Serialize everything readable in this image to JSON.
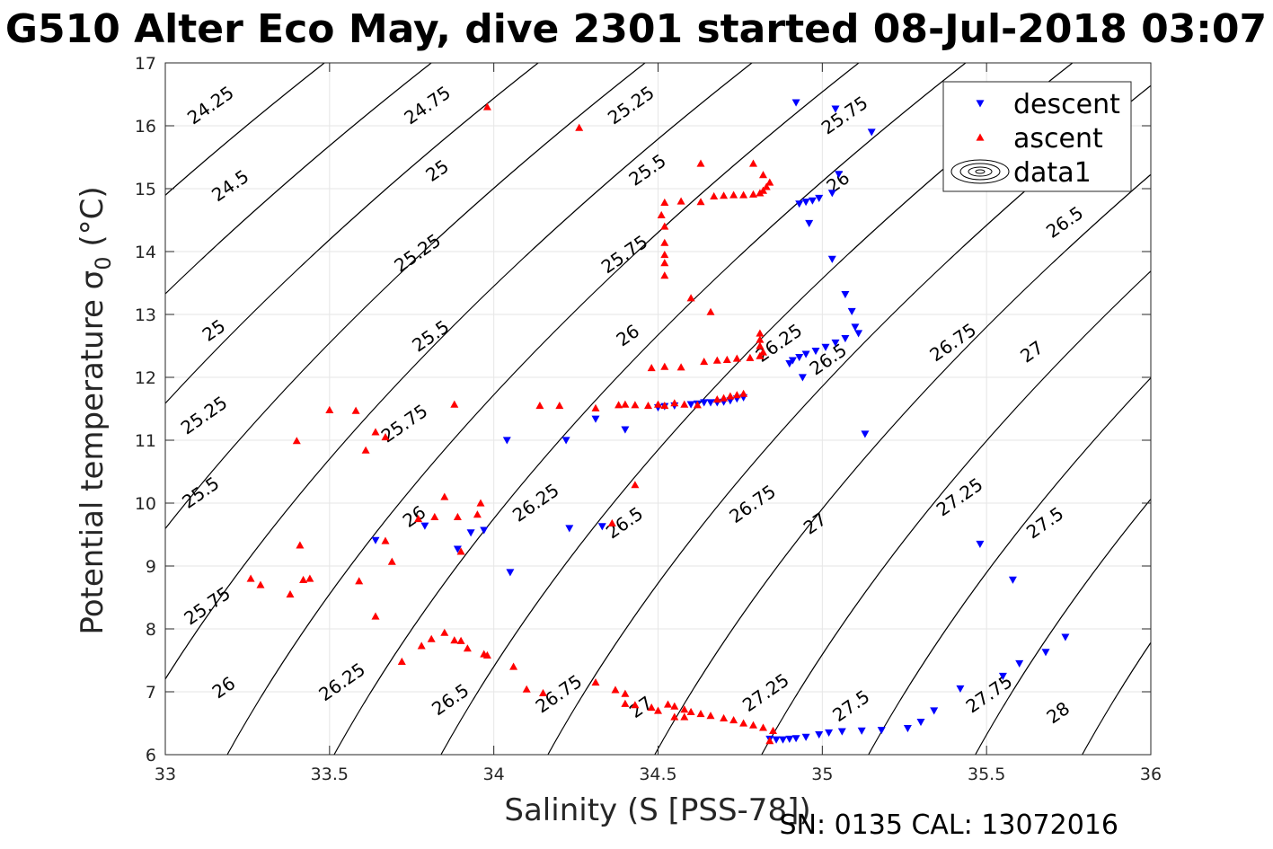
{
  "title": "G510 Alter Eco May, dive 2301 started 08-Jul-2018 03:07",
  "footnote": "SN: 0135  CAL: 13072016",
  "colors": {
    "descent": "#0000ff",
    "ascent": "#ff0000",
    "contour": "#000000",
    "grid": "#e6e6e6"
  },
  "chart_data": {
    "type": "scatter",
    "xlabel": "Salinity (S [PSS-78])",
    "ylabel": "Potential temperature σ0 (°C)",
    "xlim": [
      33,
      36
    ],
    "ylim": [
      6,
      17
    ],
    "xticks": [
      33,
      33.5,
      34,
      34.5,
      35,
      35.5,
      36
    ],
    "yticks": [
      6,
      7,
      8,
      9,
      10,
      11,
      12,
      13,
      14,
      15,
      16,
      17
    ],
    "grid": true,
    "legend_position": "top-right",
    "legend": [
      "descent",
      "ascent",
      "data1"
    ],
    "contour_levels": [
      24.25,
      24.5,
      24.75,
      25,
      25.25,
      25.5,
      25.75,
      26,
      26.25,
      26.5,
      26.75,
      27,
      27.25,
      27.5,
      27.75,
      28
    ],
    "contour_labels": [
      {
        "text": "24.25",
        "s": 33.14,
        "t": 16.31
      },
      {
        "text": "24.5",
        "s": 33.2,
        "t": 15.03
      },
      {
        "text": "24.75",
        "s": 33.8,
        "t": 16.31
      },
      {
        "text": "25",
        "s": 33.83,
        "t": 15.27
      },
      {
        "text": "25.25",
        "s": 34.42,
        "t": 16.31
      },
      {
        "text": "25.5",
        "s": 34.47,
        "t": 15.28
      },
      {
        "text": "25.75",
        "s": 35.07,
        "t": 16.15
      },
      {
        "text": "26",
        "s": 35.05,
        "t": 15.09
      },
      {
        "text": "26.5",
        "s": 35.74,
        "t": 14.45
      },
      {
        "text": "25.25",
        "s": 33.77,
        "t": 13.96
      },
      {
        "text": "25.75",
        "s": 34.4,
        "t": 13.94
      },
      {
        "text": "25",
        "s": 33.15,
        "t": 12.73
      },
      {
        "text": "25.5",
        "s": 33.81,
        "t": 12.64
      },
      {
        "text": "26",
        "s": 34.41,
        "t": 12.65
      },
      {
        "text": "26.25",
        "s": 34.87,
        "t": 12.53
      },
      {
        "text": "26.5",
        "s": 35.02,
        "t": 12.27
      },
      {
        "text": "26.75",
        "s": 35.4,
        "t": 12.54
      },
      {
        "text": "27",
        "s": 35.64,
        "t": 12.39
      },
      {
        "text": "25.25",
        "s": 33.12,
        "t": 11.38
      },
      {
        "text": "25.75",
        "s": 33.73,
        "t": 11.25
      },
      {
        "text": "25.5",
        "s": 33.11,
        "t": 10.15
      },
      {
        "text": "26",
        "s": 33.76,
        "t": 9.77
      },
      {
        "text": "26.25",
        "s": 34.13,
        "t": 9.99
      },
      {
        "text": "26.5",
        "s": 34.4,
        "t": 9.67
      },
      {
        "text": "26.75",
        "s": 34.79,
        "t": 9.97
      },
      {
        "text": "27",
        "s": 34.98,
        "t": 9.66
      },
      {
        "text": "27.25",
        "s": 35.42,
        "t": 10.08
      },
      {
        "text": "27.5",
        "s": 35.68,
        "t": 9.67
      },
      {
        "text": "25.75",
        "s": 33.13,
        "t": 8.35
      },
      {
        "text": "26",
        "s": 33.18,
        "t": 7.05
      },
      {
        "text": "26.25",
        "s": 33.54,
        "t": 7.14
      },
      {
        "text": "26.5",
        "s": 33.87,
        "t": 6.86
      },
      {
        "text": "26.75",
        "s": 34.2,
        "t": 6.95
      },
      {
        "text": "27",
        "s": 34.45,
        "t": 6.74
      },
      {
        "text": "27.25",
        "s": 34.83,
        "t": 6.97
      },
      {
        "text": "27.5",
        "s": 35.09,
        "t": 6.76
      },
      {
        "text": "27.75",
        "s": 35.51,
        "t": 6.95
      },
      {
        "text": "28",
        "s": 35.72,
        "t": 6.65
      }
    ],
    "series": [
      {
        "name": "descent",
        "marker": "triangle-down",
        "points": [
          [
            34.92,
            16.37
          ],
          [
            35.04,
            16.27
          ],
          [
            35.15,
            15.9
          ],
          [
            35.05,
            15.23
          ],
          [
            35.03,
            14.93
          ],
          [
            34.99,
            14.85
          ],
          [
            34.97,
            14.81
          ],
          [
            34.95,
            14.79
          ],
          [
            34.93,
            14.76
          ],
          [
            34.96,
            14.45
          ],
          [
            35.03,
            13.88
          ],
          [
            35.07,
            13.32
          ],
          [
            35.09,
            13.05
          ],
          [
            35.1,
            12.8
          ],
          [
            35.11,
            12.7
          ],
          [
            35.07,
            12.62
          ],
          [
            35.04,
            12.55
          ],
          [
            35.01,
            12.48
          ],
          [
            34.98,
            12.42
          ],
          [
            34.95,
            12.37
          ],
          [
            34.93,
            12.32
          ],
          [
            34.91,
            12.27
          ],
          [
            34.9,
            12.22
          ],
          [
            34.94,
            12.0
          ],
          [
            35.13,
            11.1
          ],
          [
            34.76,
            11.68
          ],
          [
            34.74,
            11.66
          ],
          [
            34.72,
            11.63
          ],
          [
            34.7,
            11.61
          ],
          [
            34.68,
            11.6
          ],
          [
            34.66,
            11.6
          ],
          [
            34.64,
            11.6
          ],
          [
            34.62,
            11.58
          ],
          [
            34.6,
            11.57
          ],
          [
            34.55,
            11.55
          ],
          [
            34.52,
            11.54
          ],
          [
            34.5,
            11.52
          ],
          [
            34.4,
            11.17
          ],
          [
            34.31,
            11.34
          ],
          [
            34.22,
            11.0
          ],
          [
            34.04,
            11.0
          ],
          [
            34.23,
            9.6
          ],
          [
            34.33,
            9.63
          ],
          [
            34.05,
            8.9
          ],
          [
            33.97,
            9.57
          ],
          [
            33.93,
            9.53
          ],
          [
            33.89,
            9.27
          ],
          [
            33.79,
            9.64
          ],
          [
            33.64,
            9.41
          ],
          [
            34.84,
            6.25
          ],
          [
            34.86,
            6.24
          ],
          [
            34.88,
            6.24
          ],
          [
            34.9,
            6.25
          ],
          [
            34.92,
            6.26
          ],
          [
            34.95,
            6.28
          ],
          [
            34.99,
            6.32
          ],
          [
            35.02,
            6.35
          ],
          [
            35.06,
            6.37
          ],
          [
            35.12,
            6.38
          ],
          [
            35.18,
            6.39
          ],
          [
            35.26,
            6.42
          ],
          [
            35.3,
            6.52
          ],
          [
            35.34,
            6.7
          ],
          [
            35.48,
            9.35
          ],
          [
            35.55,
            7.25
          ],
          [
            35.58,
            8.78
          ],
          [
            35.6,
            7.45
          ],
          [
            35.68,
            7.63
          ],
          [
            35.74,
            7.87
          ],
          [
            35.42,
            7.05
          ]
        ]
      },
      {
        "name": "ascent",
        "marker": "triangle-up",
        "points": [
          [
            33.98,
            16.3
          ],
          [
            34.26,
            15.97
          ],
          [
            34.63,
            15.4
          ],
          [
            34.79,
            15.4
          ],
          [
            34.82,
            15.22
          ],
          [
            34.84,
            15.1
          ],
          [
            34.83,
            15.03
          ],
          [
            34.82,
            14.97
          ],
          [
            34.81,
            14.93
          ],
          [
            34.79,
            14.91
          ],
          [
            34.76,
            14.9
          ],
          [
            34.73,
            14.9
          ],
          [
            34.7,
            14.89
          ],
          [
            34.67,
            14.88
          ],
          [
            34.57,
            14.8
          ],
          [
            34.52,
            14.78
          ],
          [
            34.63,
            14.79
          ],
          [
            34.51,
            14.58
          ],
          [
            34.52,
            14.4
          ],
          [
            34.52,
            14.14
          ],
          [
            34.52,
            13.95
          ],
          [
            34.52,
            13.82
          ],
          [
            34.52,
            13.62
          ],
          [
            34.6,
            13.26
          ],
          [
            34.66,
            13.04
          ],
          [
            34.81,
            12.7
          ],
          [
            34.81,
            12.6
          ],
          [
            34.81,
            12.5
          ],
          [
            34.82,
            12.4
          ],
          [
            34.81,
            12.34
          ],
          [
            34.78,
            12.31
          ],
          [
            34.74,
            12.3
          ],
          [
            34.71,
            12.28
          ],
          [
            34.68,
            12.27
          ],
          [
            34.64,
            12.25
          ],
          [
            34.57,
            12.16
          ],
          [
            34.48,
            12.15
          ],
          [
            34.52,
            12.17
          ],
          [
            34.76,
            11.74
          ],
          [
            34.74,
            11.72
          ],
          [
            34.72,
            11.7
          ],
          [
            34.7,
            11.67
          ],
          [
            34.68,
            11.65
          ],
          [
            34.62,
            11.56
          ],
          [
            34.58,
            11.57
          ],
          [
            34.55,
            11.59
          ],
          [
            34.52,
            11.55
          ],
          [
            34.5,
            11.57
          ],
          [
            34.47,
            11.55
          ],
          [
            34.43,
            11.56
          ],
          [
            34.4,
            11.57
          ],
          [
            34.38,
            11.56
          ],
          [
            34.31,
            11.51
          ],
          [
            34.2,
            11.55
          ],
          [
            34.14,
            11.55
          ],
          [
            33.88,
            11.57
          ],
          [
            33.5,
            11.48
          ],
          [
            33.58,
            11.47
          ],
          [
            33.4,
            10.99
          ],
          [
            33.61,
            10.84
          ],
          [
            33.64,
            11.13
          ],
          [
            33.67,
            11.05
          ],
          [
            33.77,
            9.75
          ],
          [
            33.82,
            9.78
          ],
          [
            33.85,
            10.1
          ],
          [
            33.89,
            9.78
          ],
          [
            33.95,
            9.82
          ],
          [
            33.96,
            10.0
          ],
          [
            33.9,
            9.23
          ],
          [
            33.67,
            9.4
          ],
          [
            33.69,
            9.07
          ],
          [
            33.59,
            8.76
          ],
          [
            33.64,
            8.2
          ],
          [
            33.41,
            9.33
          ],
          [
            33.42,
            8.78
          ],
          [
            33.44,
            8.8
          ],
          [
            33.38,
            8.55
          ],
          [
            33.29,
            8.7
          ],
          [
            33.26,
            8.8
          ],
          [
            34.36,
            9.68
          ],
          [
            34.43,
            10.29
          ],
          [
            33.72,
            7.48
          ],
          [
            33.78,
            7.73
          ],
          [
            33.81,
            7.84
          ],
          [
            33.85,
            7.94
          ],
          [
            33.88,
            7.82
          ],
          [
            33.9,
            7.81
          ],
          [
            33.92,
            7.69
          ],
          [
            33.97,
            7.6
          ],
          [
            33.98,
            7.58
          ],
          [
            34.06,
            7.4
          ],
          [
            34.1,
            7.04
          ],
          [
            34.15,
            6.98
          ],
          [
            34.31,
            7.15
          ],
          [
            34.37,
            7.03
          ],
          [
            34.4,
            6.97
          ],
          [
            34.4,
            6.81
          ],
          [
            34.43,
            6.79
          ],
          [
            34.48,
            6.75
          ],
          [
            34.5,
            6.7
          ],
          [
            34.53,
            6.8
          ],
          [
            34.55,
            6.77
          ],
          [
            34.58,
            6.72
          ],
          [
            34.6,
            6.68
          ],
          [
            34.63,
            6.65
          ],
          [
            34.66,
            6.62
          ],
          [
            34.7,
            6.58
          ],
          [
            34.73,
            6.55
          ],
          [
            34.76,
            6.5
          ],
          [
            34.79,
            6.47
          ],
          [
            34.82,
            6.43
          ],
          [
            34.85,
            6.38
          ],
          [
            34.84,
            6.22
          ],
          [
            34.55,
            6.6
          ],
          [
            34.58,
            6.6
          ]
        ]
      }
    ]
  }
}
